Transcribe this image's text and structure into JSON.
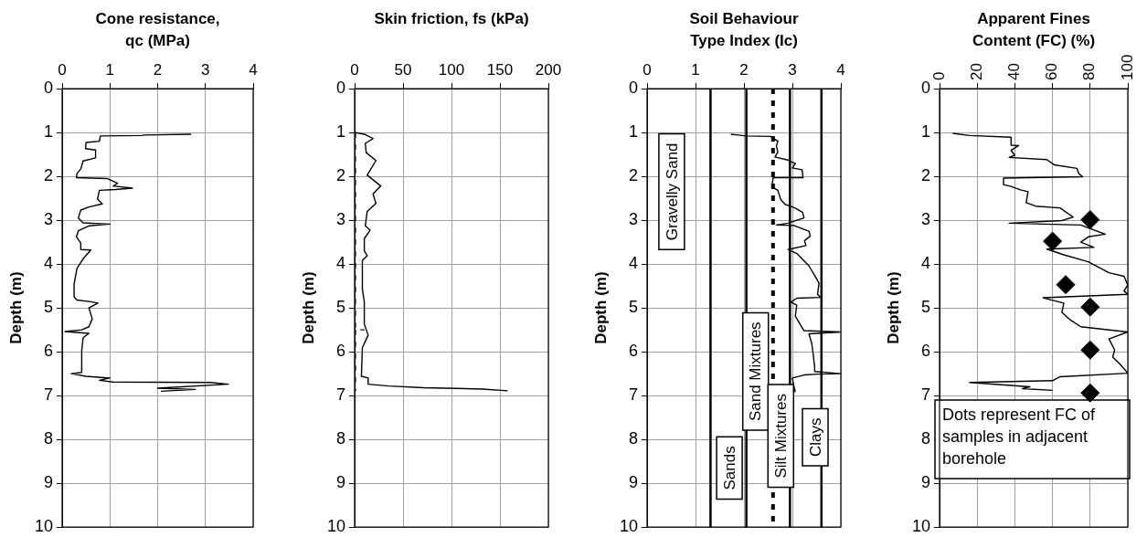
{
  "chart_data": [
    {
      "type": "line",
      "title": "Cone resistance, qc (MPa)",
      "ylabel": "Depth (m)",
      "xlim": [
        0,
        4
      ],
      "xticks": [
        0,
        1,
        2,
        3,
        4
      ],
      "ylim": [
        10,
        0
      ],
      "yticks": [
        0,
        1,
        2,
        3,
        4,
        5,
        6,
        7,
        8,
        9,
        10
      ],
      "grid": true,
      "legend": false,
      "marker": "none",
      "series": [
        {
          "color": "#000000",
          "x": [
            2.7,
            1.7,
            1.68,
            0.8,
            0.78,
            0.5,
            0.49,
            0.7,
            0.7,
            0.44,
            0.39,
            0.31,
            0.3,
            0.94,
            1.16,
            1.07,
            1.47,
            1.12,
            0.78,
            0.74,
            0.84,
            0.56,
            0.39,
            0.34,
            0.44,
            1.0,
            0.56,
            0.34,
            0.3,
            0.39,
            0.39,
            0.6,
            0.44,
            0.31,
            0.25,
            0.25,
            0.31,
            0.6,
            0.75,
            0.56,
            0.63,
            0.56,
            0.41,
            0.06,
            0.56,
            0.44,
            0.41,
            0.41,
            0.19,
            0.5,
            1.0,
            0.78,
            1.06,
            3.1,
            3.48,
            2.0,
            2.79,
            2.07
          ],
          "values": [
            1.04,
            1.06,
            1.07,
            1.08,
            1.2,
            1.23,
            1.37,
            1.4,
            1.58,
            1.65,
            1.83,
            1.94,
            2.03,
            2.05,
            2.16,
            2.22,
            2.27,
            2.3,
            2.32,
            2.52,
            2.63,
            2.7,
            2.77,
            2.95,
            3.06,
            3.09,
            3.13,
            3.24,
            3.38,
            3.52,
            3.67,
            3.68,
            3.88,
            4.1,
            4.46,
            4.75,
            4.82,
            4.86,
            4.89,
            5.0,
            5.25,
            5.43,
            5.5,
            5.54,
            5.58,
            5.68,
            5.97,
            6.47,
            6.5,
            6.56,
            6.6,
            6.65,
            6.69,
            6.7,
            6.74,
            6.83,
            6.86,
            6.9
          ]
        }
      ]
    },
    {
      "type": "line",
      "title": "Skin friction, fs (kPa)",
      "ylabel": "Depth (m)",
      "xlim": [
        0,
        200
      ],
      "xticks": [
        0,
        50,
        100,
        150,
        200
      ],
      "ylim": [
        10,
        0
      ],
      "yticks": [
        0,
        1,
        2,
        3,
        4,
        5,
        6,
        7,
        8,
        9,
        10
      ],
      "grid": true,
      "legend": false,
      "marker": "none",
      "series": [
        {
          "color": "#000000",
          "x": [
            0,
            10,
            19,
            11,
            12,
            22,
            16,
            13,
            19,
            27,
            19,
            22,
            13,
            11,
            16,
            10,
            10,
            13,
            8,
            8,
            10,
            10,
            14,
            8,
            7,
            14,
            14,
            35,
            71,
            132,
            158
          ],
          "values": [
            1.0,
            1.04,
            1.14,
            1.25,
            1.46,
            1.64,
            1.86,
            1.97,
            2.08,
            2.22,
            2.4,
            2.62,
            2.8,
            3.13,
            3.23,
            3.42,
            3.7,
            3.81,
            3.92,
            4.57,
            4.86,
            5.37,
            5.62,
            5.91,
            6.56,
            6.6,
            6.74,
            6.78,
            6.82,
            6.85,
            6.89
          ]
        },
        {
          "color": "#000000",
          "line_style": "dotted",
          "x": [
            1,
            1,
            10,
            1,
            1
          ],
          "values": [
            1.0,
            5.5,
            5.5,
            5.52,
            6.9
          ]
        }
      ]
    },
    {
      "type": "line",
      "title": "Soil Behaviour Type Index (Ic)",
      "ylabel": "Depth (m)",
      "xlim": [
        0,
        4
      ],
      "xticks": [
        0,
        1,
        2,
        3,
        4
      ],
      "ylim": [
        10,
        0
      ],
      "yticks": [
        0,
        1,
        2,
        3,
        4,
        5,
        6,
        7,
        8,
        9,
        10
      ],
      "grid": true,
      "legend": false,
      "marker": "none",
      "ref_lines": [
        {
          "axis": "x",
          "value": 1.31,
          "color": "#000000",
          "line_style": "solid"
        },
        {
          "axis": "x",
          "value": 2.05,
          "color": "#000000",
          "line_style": "solid"
        },
        {
          "axis": "x",
          "value": 2.6,
          "color": "#000000",
          "line_style": "dotted"
        },
        {
          "axis": "x",
          "value": 2.95,
          "color": "#000000",
          "line_style": "solid"
        },
        {
          "axis": "x",
          "value": 3.6,
          "color": "#000000",
          "line_style": "solid"
        }
      ],
      "annotations": [
        "Gravelly Sand",
        "Sands",
        "Sand Mixtures",
        "Silt Mixtures",
        "Clays"
      ],
      "series": [
        {
          "color": "#000000",
          "x": [
            1.73,
            1.88,
            2.04,
            2.55,
            2.7,
            2.67,
            2.7,
            2.64,
            2.91,
            3.06,
            3.0,
            3.2,
            3.22,
            2.6,
            2.58,
            2.7,
            2.76,
            2.85,
            3.03,
            3.21,
            3.24,
            3.09,
            2.91,
            2.67,
            3.03,
            3.34,
            3.37,
            3.25,
            3.28,
            2.91,
            3.09,
            3.34,
            3.46,
            3.55,
            3.52,
            3.58,
            3.09,
            2.97,
            3.09,
            3.06,
            3.18,
            3.24,
            4.0,
            3.34,
            3.4,
            3.43,
            3.46,
            3.46,
            4.0,
            3.52,
            3.24,
            3.0,
            3.03,
            3.06
          ],
          "values": [
            1.04,
            1.06,
            1.08,
            1.09,
            1.2,
            1.31,
            1.45,
            1.56,
            1.63,
            1.71,
            1.81,
            1.85,
            2.03,
            2.03,
            2.24,
            2.32,
            2.53,
            2.64,
            2.71,
            2.82,
            2.95,
            3.0,
            3.07,
            3.11,
            3.12,
            3.25,
            3.36,
            3.47,
            3.58,
            3.67,
            3.76,
            4.04,
            4.26,
            4.44,
            4.69,
            4.76,
            4.78,
            4.87,
            4.94,
            5.19,
            5.41,
            5.52,
            5.55,
            5.59,
            5.81,
            6.06,
            6.35,
            6.45,
            6.5,
            6.51,
            6.53,
            6.6,
            6.78,
            6.92
          ]
        }
      ]
    },
    {
      "type": "line",
      "title": "Apparent Fines Content (FC) (%)",
      "ylabel": "Depth (m)",
      "xlim": [
        0,
        100
      ],
      "xticks": [
        0,
        20,
        40,
        60,
        80,
        100
      ],
      "ylim": [
        10,
        0
      ],
      "yticks": [
        0,
        1,
        2,
        3,
        4,
        5,
        6,
        7,
        8,
        9,
        10
      ],
      "grid": true,
      "legend": false,
      "marker": "none",
      "annotations": [
        "Dots represent FC of samples in adjacent borehole"
      ],
      "series": [
        {
          "color": "#000000",
          "x": [
            7,
            16,
            38,
            38,
            42,
            38,
            40,
            37,
            57,
            61,
            73,
            74,
            76,
            34,
            34,
            38,
            43,
            47,
            46,
            51,
            64,
            71,
            65,
            37,
            75,
            88,
            79,
            75,
            82,
            57,
            66,
            79,
            90,
            98,
            100,
            98,
            100,
            55,
            66,
            65,
            69,
            75,
            100,
            90,
            93,
            92,
            96,
            100,
            64,
            60,
            16,
            48,
            44,
            60
          ],
          "values": [
            1.02,
            1.07,
            1.11,
            1.29,
            1.3,
            1.41,
            1.52,
            1.57,
            1.62,
            1.74,
            1.82,
            1.94,
            2.01,
            2.04,
            2.19,
            2.23,
            2.31,
            2.35,
            2.6,
            2.68,
            2.72,
            2.93,
            3.01,
            3.07,
            3.11,
            3.32,
            3.38,
            3.5,
            3.62,
            3.66,
            3.79,
            3.95,
            4.2,
            4.28,
            4.48,
            4.61,
            4.69,
            4.77,
            4.89,
            5.1,
            5.26,
            5.43,
            5.55,
            5.71,
            5.96,
            6.12,
            6.29,
            6.49,
            6.57,
            6.66,
            6.7,
            6.8,
            6.84,
            6.88
          ]
        },
        {
          "type": "scatter",
          "marker": "diamond",
          "color": "#000000",
          "x": [
            80,
            60,
            67,
            80,
            80,
            80
          ],
          "values": [
            2.99,
            3.48,
            4.47,
            4.98,
            5.96,
            6.94
          ]
        }
      ]
    }
  ]
}
